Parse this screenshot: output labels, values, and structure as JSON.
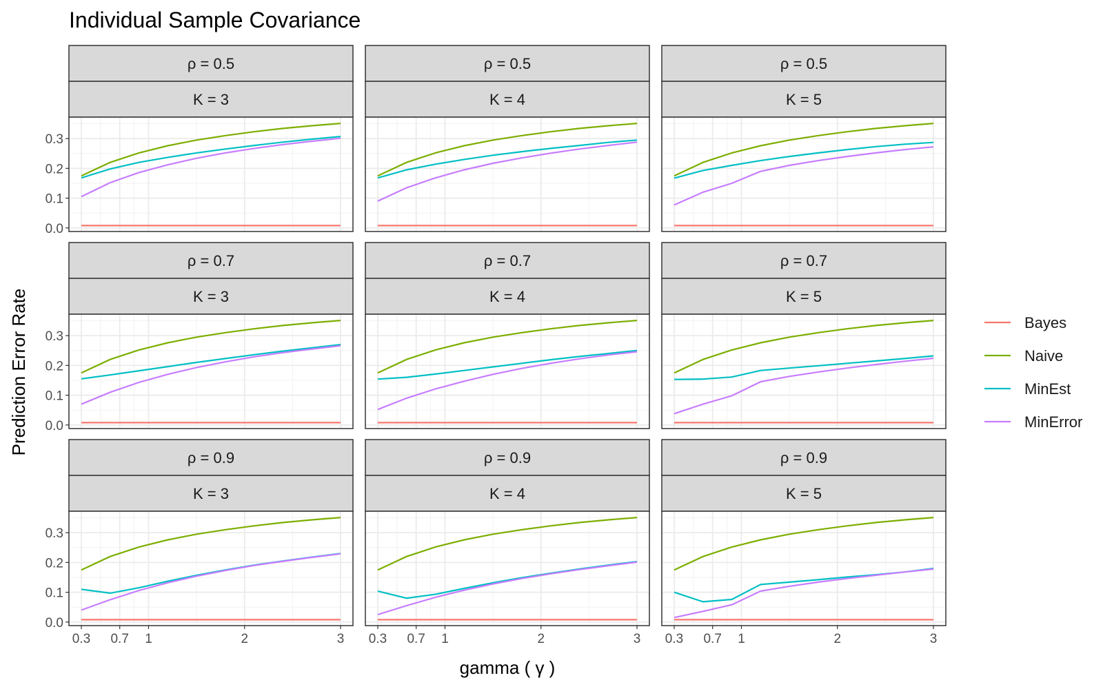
{
  "chart_data": {
    "type": "line",
    "title": "Individual Sample Covariance",
    "xlabel": "gamma ( γ )",
    "ylabel": "Prediction Error Rate",
    "xlim": [
      0.3,
      3
    ],
    "ylim": [
      0,
      0.35
    ],
    "x_ticks": [
      0.3,
      0.7,
      1,
      2,
      3
    ],
    "x_tick_labels": [
      "0.3",
      "0.7",
      "1",
      "2",
      "3"
    ],
    "y_ticks": [
      0,
      0.1,
      0.2,
      0.3
    ],
    "y_tick_labels": [
      "0.0",
      "0.1",
      "0.2",
      "0.3"
    ],
    "grid": true,
    "legend_position": "right",
    "legend": [
      {
        "name": "Bayes",
        "color": "#F8766D"
      },
      {
        "name": "Naive",
        "color": "#7CAE00"
      },
      {
        "name": "MinEst",
        "color": "#00BFC4"
      },
      {
        "name": "MinError",
        "color": "#C77CFF"
      }
    ],
    "x": [
      0.3,
      0.6,
      0.9,
      1.2,
      1.5,
      1.8,
      2.1,
      2.4,
      2.7,
      3.0
    ],
    "panels": [
      {
        "rho": "ρ  = 0.5",
        "k": "K  = 3",
        "series": {
          "Bayes": [
            0.008,
            0.008,
            0.008,
            0.008,
            0.008,
            0.008,
            0.008,
            0.008,
            0.008,
            0.008
          ],
          "Naive": [
            0.175,
            0.22,
            0.252,
            0.276,
            0.295,
            0.31,
            0.323,
            0.334,
            0.343,
            0.351
          ],
          "MinEst": [
            0.168,
            0.198,
            0.22,
            0.237,
            0.252,
            0.265,
            0.277,
            0.288,
            0.298,
            0.307
          ],
          "MinError": [
            0.105,
            0.152,
            0.186,
            0.212,
            0.234,
            0.252,
            0.267,
            0.28,
            0.291,
            0.301
          ]
        }
      },
      {
        "rho": "ρ  = 0.5",
        "k": "K  = 4",
        "series": {
          "Bayes": [
            0.008,
            0.008,
            0.008,
            0.008,
            0.008,
            0.008,
            0.008,
            0.008,
            0.008,
            0.008
          ],
          "Naive": [
            0.175,
            0.22,
            0.252,
            0.276,
            0.295,
            0.31,
            0.323,
            0.334,
            0.343,
            0.351
          ],
          "MinEst": [
            0.168,
            0.195,
            0.214,
            0.23,
            0.244,
            0.256,
            0.267,
            0.277,
            0.287,
            0.295
          ],
          "MinError": [
            0.09,
            0.135,
            0.168,
            0.195,
            0.217,
            0.235,
            0.251,
            0.265,
            0.277,
            0.288
          ]
        }
      },
      {
        "rho": "ρ  = 0.5",
        "k": "K  = 5",
        "series": {
          "Bayes": [
            0.008,
            0.008,
            0.008,
            0.008,
            0.008,
            0.008,
            0.008,
            0.008,
            0.008,
            0.008
          ],
          "Naive": [
            0.175,
            0.22,
            0.252,
            0.276,
            0.295,
            0.31,
            0.323,
            0.334,
            0.343,
            0.351
          ],
          "MinEst": [
            0.167,
            0.193,
            0.21,
            0.226,
            0.24,
            0.252,
            0.263,
            0.273,
            0.281,
            0.287
          ],
          "MinError": [
            0.077,
            0.12,
            0.15,
            0.19,
            0.21,
            0.226,
            0.24,
            0.252,
            0.263,
            0.272
          ]
        }
      },
      {
        "rho": "ρ  = 0.7",
        "k": "K  = 3",
        "series": {
          "Bayes": [
            0.008,
            0.008,
            0.008,
            0.008,
            0.008,
            0.008,
            0.008,
            0.008,
            0.008,
            0.008
          ],
          "Naive": [
            0.175,
            0.22,
            0.252,
            0.276,
            0.295,
            0.31,
            0.323,
            0.334,
            0.343,
            0.351
          ],
          "MinEst": [
            0.155,
            0.168,
            0.182,
            0.196,
            0.21,
            0.223,
            0.236,
            0.248,
            0.259,
            0.27
          ],
          "MinError": [
            0.07,
            0.11,
            0.143,
            0.17,
            0.193,
            0.212,
            0.229,
            0.243,
            0.255,
            0.266
          ]
        }
      },
      {
        "rho": "ρ  = 0.7",
        "k": "K  = 4",
        "series": {
          "Bayes": [
            0.008,
            0.008,
            0.008,
            0.008,
            0.008,
            0.008,
            0.008,
            0.008,
            0.008,
            0.008
          ],
          "Naive": [
            0.175,
            0.22,
            0.252,
            0.276,
            0.295,
            0.31,
            0.323,
            0.334,
            0.343,
            0.351
          ],
          "MinEst": [
            0.154,
            0.16,
            0.171,
            0.183,
            0.195,
            0.207,
            0.219,
            0.23,
            0.24,
            0.25
          ],
          "MinError": [
            0.052,
            0.09,
            0.121,
            0.147,
            0.17,
            0.19,
            0.207,
            0.222,
            0.235,
            0.246
          ]
        }
      },
      {
        "rho": "ρ  = 0.7",
        "k": "K  = 5",
        "series": {
          "Bayes": [
            0.008,
            0.008,
            0.008,
            0.008,
            0.008,
            0.008,
            0.008,
            0.008,
            0.008,
            0.008
          ],
          "Naive": [
            0.175,
            0.22,
            0.252,
            0.276,
            0.295,
            0.31,
            0.323,
            0.334,
            0.343,
            0.351
          ],
          "MinEst": [
            0.153,
            0.154,
            0.161,
            0.183,
            0.191,
            0.199,
            0.207,
            0.215,
            0.223,
            0.232
          ],
          "MinError": [
            0.038,
            0.07,
            0.098,
            0.145,
            0.163,
            0.178,
            0.191,
            0.203,
            0.214,
            0.224
          ]
        }
      },
      {
        "rho": "ρ  = 0.9",
        "k": "K  = 3",
        "series": {
          "Bayes": [
            0.008,
            0.008,
            0.008,
            0.008,
            0.008,
            0.008,
            0.008,
            0.008,
            0.008,
            0.008
          ],
          "Naive": [
            0.175,
            0.22,
            0.252,
            0.276,
            0.295,
            0.31,
            0.323,
            0.334,
            0.343,
            0.351
          ],
          "MinEst": [
            0.11,
            0.097,
            0.115,
            0.137,
            0.157,
            0.175,
            0.191,
            0.205,
            0.218,
            0.23
          ],
          "MinError": [
            0.04,
            0.075,
            0.106,
            0.132,
            0.154,
            0.173,
            0.19,
            0.204,
            0.217,
            0.229
          ]
        }
      },
      {
        "rho": "ρ  = 0.9",
        "k": "K  = 4",
        "series": {
          "Bayes": [
            0.008,
            0.008,
            0.008,
            0.008,
            0.008,
            0.008,
            0.008,
            0.008,
            0.008,
            0.008
          ],
          "Naive": [
            0.175,
            0.22,
            0.252,
            0.276,
            0.295,
            0.31,
            0.323,
            0.334,
            0.343,
            0.351
          ],
          "MinEst": [
            0.104,
            0.08,
            0.093,
            0.113,
            0.132,
            0.149,
            0.164,
            0.178,
            0.191,
            0.203
          ],
          "MinError": [
            0.025,
            0.055,
            0.083,
            0.107,
            0.128,
            0.146,
            0.162,
            0.176,
            0.189,
            0.201
          ]
        }
      },
      {
        "rho": "ρ  = 0.9",
        "k": "K  = 5",
        "series": {
          "Bayes": [
            0.008,
            0.008,
            0.008,
            0.008,
            0.008,
            0.008,
            0.008,
            0.008,
            0.008,
            0.008
          ],
          "Naive": [
            0.175,
            0.22,
            0.252,
            0.276,
            0.295,
            0.31,
            0.323,
            0.334,
            0.343,
            0.351
          ],
          "MinEst": [
            0.1,
            0.068,
            0.076,
            0.126,
            0.134,
            0.142,
            0.151,
            0.159,
            0.168,
            0.18
          ],
          "MinError": [
            0.015,
            0.036,
            0.058,
            0.104,
            0.12,
            0.134,
            0.146,
            0.157,
            0.168,
            0.178
          ]
        }
      }
    ]
  }
}
